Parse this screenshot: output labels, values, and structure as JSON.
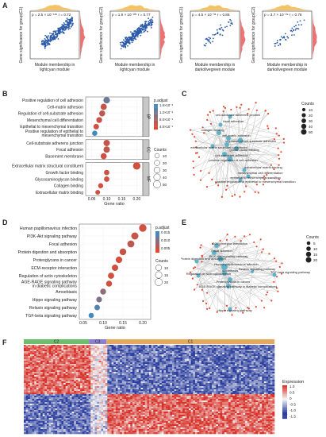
{
  "panels": {
    "A": {
      "label": "A",
      "scatters": [
        {
          "ylabel": "Gene significance for group(C1)",
          "xlabel_line1": "Module membership in",
          "xlabel_line2": "lightcyan module",
          "stat": "p = 2.5 × 10⁻¹⁸⁶ r = 0.72"
        },
        {
          "ylabel": "Gene significance for group(C2)",
          "xlabel_line1": "Module membership in",
          "xlabel_line2": "lightcyan module",
          "stat": "p = 1.9 × 10⁻²²¹ r = 0.77"
        },
        {
          "ylabel": "Gene significance for group(C1)",
          "xlabel_line1": "Module membership in",
          "xlabel_line2": "darkolivegreen module",
          "stat": "p = 4.5 × 10⁻³⁸ r = 0.85"
        },
        {
          "ylabel": "Gene significance for group(C2)",
          "xlabel_line1": "Module membership in",
          "xlabel_line2": "darkolivegreen module",
          "stat": "p = 3.7 × 10⁻²⁹ r = 0.78"
        }
      ]
    },
    "B": {
      "label": "B",
      "xlabel": "Gene ratio",
      "groups": [
        "BP",
        "CC",
        "MF"
      ],
      "legend_title_color": "p.adjust",
      "color_ticks": [
        "1.6×10⁻⁸",
        "1.2×10⁻⁸",
        "8.0×10⁻⁹",
        "4.0×10⁻⁹"
      ],
      "legend_title_size": "Counts",
      "size_ticks": [
        "10",
        "20",
        "30",
        "40",
        "50"
      ]
    },
    "C": {
      "label": "C",
      "legend_title": "Counts",
      "size_ticks": [
        "10",
        "20",
        "30",
        "40",
        "50"
      ],
      "node_labels": [
        "cell-substrate adherens junction",
        "focal adhesion",
        "collagen binding",
        "cell-matrix adhesion",
        "regulation of cell-substrate adhesion",
        "extracellular matrix structural constituent",
        "growth factor binding",
        "cell-substrate adhesion",
        "positive regulation of cell adhesion",
        "extracellular matrix binding",
        "mesenchymal cell differentiation",
        "epithelial to mesenchymal transition",
        "positive regulation of epithelial to mesenchymal transition"
      ]
    },
    "D": {
      "label": "D",
      "xlabel": "Gene ratio",
      "legend_title_color": "p.adjust",
      "color_ticks": [
        "0.015",
        "0.010",
        "0.005"
      ],
      "legend_title_size": "Counts",
      "size_ticks": [
        "10",
        "15",
        "20"
      ]
    },
    "E": {
      "label": "E",
      "legend_title": "Counts",
      "size_ticks": [
        "5",
        "10",
        "15",
        "20"
      ],
      "node_labels": [
        "ECM-receptor interaction",
        "Focal adhesion",
        "PI3K-Akt signaling pathway",
        "Human papillomavirus infection",
        "Protein digestion and absorption",
        "Relaxin signaling pathway",
        "Amoebiasis",
        "TGF-beta signaling pathway",
        "Regulation of actin cytoskeleton",
        "Proteoglycans in cancer",
        "AGE-RAGE signaling pathway in diabetic complications",
        "Hippo signaling pathway"
      ]
    },
    "F": {
      "label": "F",
      "groups": [
        "C2",
        "C3",
        "C1"
      ],
      "legend_title": "Expression",
      "ticks": [
        "1.0",
        "0.5",
        "0",
        "-0.5",
        "-1.0",
        "-1.5"
      ]
    }
  },
  "colors": {
    "low_padj": "#e8462a",
    "high_padj": "#3a8fc6",
    "scatter_point": "#2b5aa8",
    "density_top": "#f2b84b",
    "density_right": "#e85a5a",
    "heat_high": "#d7301f",
    "heat_low": "#2c3f9e",
    "group_c2": "#6cbf6a",
    "group_c3": "#8b7fd0",
    "group_c1": "#e6a85a"
  },
  "chart_data": [
    {
      "type": "scatter",
      "title": "",
      "note": "Panel B GO enrichment dot plot",
      "categories": [
        "Positive regulation of cell adhesion",
        "Cell-matrix adhesion",
        "Regulation of cell-substrate adhesion",
        "Mesenchymal cell differentiation",
        "Epithelial to mesenchymal transition",
        "Positive regulation of epithelial to mesenchymal transition",
        "Cell-substrate adherens junction",
        "Focal adhesion",
        "Basement membrane",
        "Extracellular matrix structural constituent",
        "Growth factor binding",
        "Glycosaminoglycan binding",
        "Collagen binding",
        "Extracellular matrix binding"
      ],
      "category_group": [
        "BP",
        "BP",
        "BP",
        "BP",
        "BP",
        "BP",
        "CC",
        "CC",
        "CC",
        "MF",
        "MF",
        "MF",
        "MF",
        "MF"
      ],
      "x": [
        0.1,
        0.09,
        0.085,
        0.075,
        0.065,
        0.06,
        0.1,
        0.1,
        0.09,
        0.2,
        0.1,
        0.1,
        0.08,
        0.07
      ],
      "counts": [
        35,
        30,
        28,
        25,
        22,
        18,
        33,
        33,
        28,
        55,
        20,
        20,
        15,
        12
      ],
      "padj_level": [
        0.7,
        0.2,
        0.25,
        0.2,
        0.15,
        0.95,
        0.2,
        0.25,
        0.15,
        0.15,
        0.2,
        0.15,
        0.1,
        0.15
      ],
      "xlabel": "Gene ratio",
      "xticks": [
        0.05,
        0.1,
        0.15,
        0.2
      ],
      "xlim": [
        0.03,
        0.22
      ]
    },
    {
      "type": "scatter",
      "title": "",
      "note": "Panel D KEGG enrichment dot plot",
      "categories": [
        "Human papillomavirus infection",
        "PI3K-Akt signaling pathway",
        "Focal adhesion",
        "Protein digestion and absorption",
        "Proteoglycans in cancer",
        "ECM-receptor interaction",
        "Regulation of actin cytoskeleton",
        "AGE-RAGE signaling pathway in diabetic complications",
        "Amoebiasis",
        "Hippo signaling pathway",
        "Relaxin signaling pathway",
        "TGF-beta signaling pathway"
      ],
      "x": [
        0.2,
        0.18,
        0.17,
        0.15,
        0.14,
        0.13,
        0.12,
        0.115,
        0.1,
        0.09,
        0.085,
        0.07
      ],
      "counts": [
        21,
        19,
        17,
        15,
        14,
        13,
        12,
        11,
        10,
        9,
        8,
        7
      ],
      "padj_level": [
        0.15,
        0.2,
        0.25,
        0.2,
        0.1,
        0.15,
        0.15,
        0.15,
        0.5,
        0.6,
        0.85,
        0.95
      ],
      "xlabel": "Gene ratio",
      "xticks": [
        0.05,
        0.1,
        0.15,
        0.2
      ],
      "xlim": [
        0.04,
        0.22
      ]
    }
  ]
}
